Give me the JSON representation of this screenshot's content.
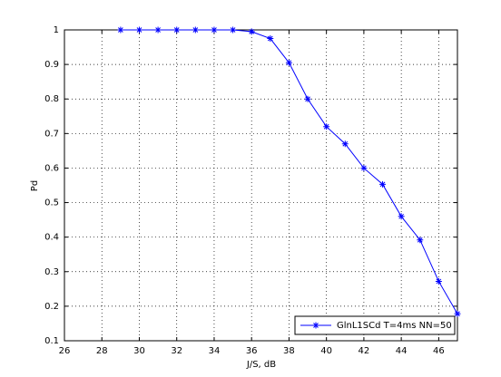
{
  "chart_data": {
    "type": "line",
    "xlabel": "J/S, dB",
    "ylabel": "Pd",
    "x": [
      29,
      30,
      31,
      32,
      33,
      34,
      35,
      36,
      37,
      38,
      39,
      40,
      41,
      42,
      43,
      44,
      45,
      46,
      47
    ],
    "series": [
      {
        "name": "GlnL1SCd T=4ms NN=50",
        "color": "#0000ff",
        "marker": "*",
        "values": [
          1,
          1,
          1,
          1,
          1,
          1,
          1,
          0.995,
          0.975,
          0.905,
          0.8,
          0.72,
          0.67,
          0.6,
          0.553,
          0.46,
          0.392,
          0.272,
          0.178
        ]
      }
    ],
    "xlim": [
      26,
      47
    ],
    "ylim": [
      0.1,
      1
    ],
    "xticks": [
      26,
      28,
      30,
      32,
      34,
      36,
      38,
      40,
      42,
      44,
      46
    ],
    "yticks": [
      0.1,
      0.2,
      0.3,
      0.4,
      0.5,
      0.6,
      0.7,
      0.8,
      0.9,
      1
    ],
    "grid": true,
    "legend": "southeast"
  }
}
